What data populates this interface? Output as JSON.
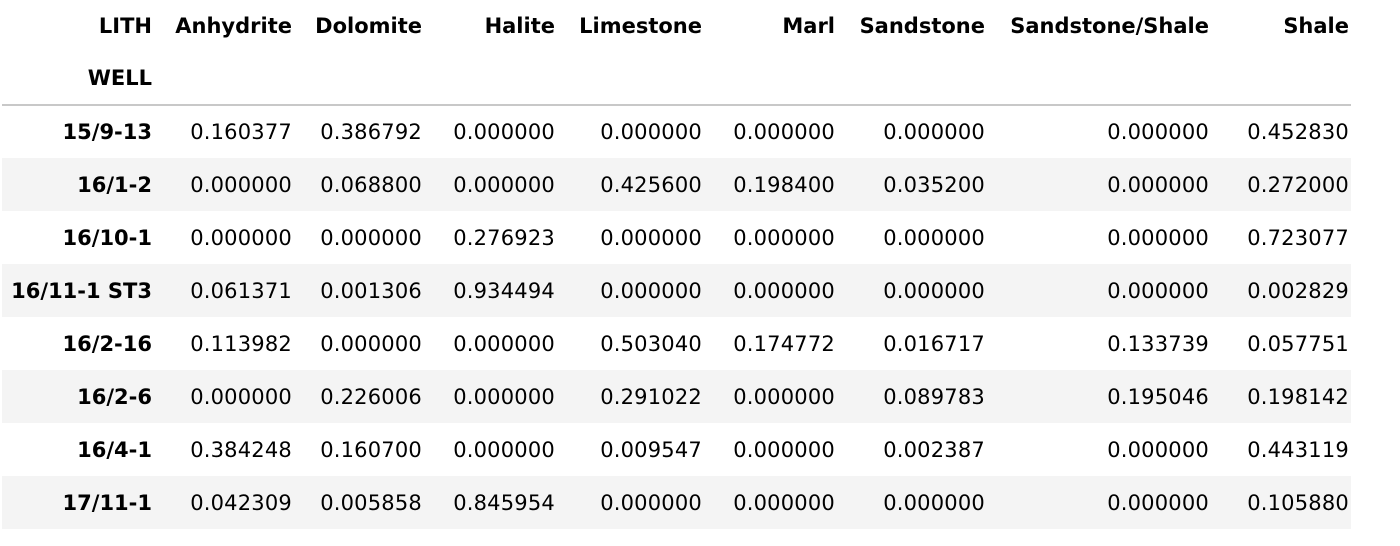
{
  "table": {
    "columns_name": "LITH",
    "index_name": "WELL",
    "columns": [
      "Anhydrite",
      "Dolomite",
      "Halite",
      "Limestone",
      "Marl",
      "Sandstone",
      "Sandstone/Shale",
      "Shale"
    ],
    "rows": [
      {
        "index": "15/9-13",
        "values": [
          "0.160377",
          "0.386792",
          "0.000000",
          "0.000000",
          "0.000000",
          "0.000000",
          "0.000000",
          "0.452830"
        ]
      },
      {
        "index": "16/1-2",
        "values": [
          "0.000000",
          "0.068800",
          "0.000000",
          "0.425600",
          "0.198400",
          "0.035200",
          "0.000000",
          "0.272000"
        ]
      },
      {
        "index": "16/10-1",
        "values": [
          "0.000000",
          "0.000000",
          "0.276923",
          "0.000000",
          "0.000000",
          "0.000000",
          "0.000000",
          "0.723077"
        ]
      },
      {
        "index": "16/11-1 ST3",
        "values": [
          "0.061371",
          "0.001306",
          "0.934494",
          "0.000000",
          "0.000000",
          "0.000000",
          "0.000000",
          "0.002829"
        ]
      },
      {
        "index": "16/2-16",
        "values": [
          "0.113982",
          "0.000000",
          "0.000000",
          "0.503040",
          "0.174772",
          "0.016717",
          "0.133739",
          "0.057751"
        ]
      },
      {
        "index": "16/2-6",
        "values": [
          "0.000000",
          "0.226006",
          "0.000000",
          "0.291022",
          "0.000000",
          "0.089783",
          "0.195046",
          "0.198142"
        ]
      },
      {
        "index": "16/4-1",
        "values": [
          "0.384248",
          "0.160700",
          "0.000000",
          "0.009547",
          "0.000000",
          "0.002387",
          "0.000000",
          "0.443119"
        ]
      },
      {
        "index": "17/11-1",
        "values": [
          "0.042309",
          "0.005858",
          "0.845954",
          "0.000000",
          "0.000000",
          "0.000000",
          "0.000000",
          "0.105880"
        ]
      }
    ]
  },
  "colors": {
    "row_stripe": "#f4f4f4",
    "header_rule": "#c8c8c8",
    "text": "#000000"
  }
}
